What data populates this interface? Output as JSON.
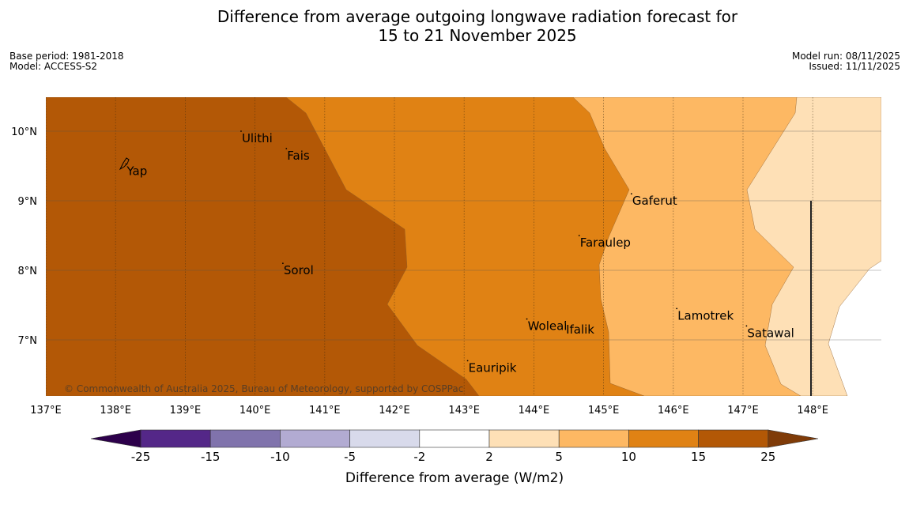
{
  "title_line1": "Difference from average outgoing longwave radiation forecast for",
  "title_line2": "15 to 21 November 2025",
  "base_period": "Base period: 1981-2018",
  "model": "Model: ACCESS-S2",
  "model_run": "Model run: 08/11/2025",
  "issued": "Issued: 11/11/2025",
  "copyright": "© Commonwealth of Australia 2025, Bureau of Meteorology, supported by COSPPac",
  "colorbar_title": "Difference from average (W/m2)",
  "map_data": {
    "lon_range": [
      137,
      149
    ],
    "lat_range": [
      6.2,
      10.5
    ],
    "lon_ticks": [
      {
        "value": 137,
        "label": "137°E"
      },
      {
        "value": 138,
        "label": "138°E"
      },
      {
        "value": 139,
        "label": "139°E"
      },
      {
        "value": 140,
        "label": "140°E"
      },
      {
        "value": 141,
        "label": "141°E"
      },
      {
        "value": 142,
        "label": "142°E"
      },
      {
        "value": 143,
        "label": "143°E"
      },
      {
        "value": 144,
        "label": "144°E"
      },
      {
        "value": 145,
        "label": "145°E"
      },
      {
        "value": 146,
        "label": "146°E"
      },
      {
        "value": 147,
        "label": "147°E"
      },
      {
        "value": 148,
        "label": "148°E"
      }
    ],
    "lat_ticks": [
      {
        "value": 10,
        "label": "10°N"
      },
      {
        "value": 9,
        "label": "9°N"
      },
      {
        "value": 8,
        "label": "8°N"
      },
      {
        "value": 7,
        "label": "7°N"
      }
    ],
    "places": [
      {
        "name": "Ulithi",
        "lon": 139.8,
        "lat": 10.0
      },
      {
        "name": "Fais",
        "lon": 140.45,
        "lat": 9.75
      },
      {
        "name": "Yap",
        "lon": 138.15,
        "lat": 9.53
      },
      {
        "name": "Gaferut",
        "lon": 145.4,
        "lat": 9.1
      },
      {
        "name": "Faraulep",
        "lon": 144.65,
        "lat": 8.5
      },
      {
        "name": "Sorol",
        "lon": 140.4,
        "lat": 8.1
      },
      {
        "name": "Lamotrek",
        "lon": 146.05,
        "lat": 7.45
      },
      {
        "name": "Woleai",
        "lon": 143.9,
        "lat": 7.3
      },
      {
        "name": "Ifalik",
        "lon": 144.45,
        "lat": 7.25
      },
      {
        "name": "Satawal",
        "lon": 147.05,
        "lat": 7.2
      },
      {
        "name": "Eauripik",
        "lon": 143.05,
        "lat": 6.7
      }
    ],
    "colors": {
      "c10_15": "#e08214",
      "c15_25": "#b35806",
      "c5_10": "#fdb863",
      "c2_5": "#fee0b6",
      "nochange": "#ffffff"
    }
  },
  "colorbar": {
    "bounds": [
      "-25",
      "-15",
      "-10",
      "-5",
      "-2",
      "2",
      "5",
      "10",
      "15",
      "25"
    ],
    "colors": [
      "#542788",
      "#8073ac",
      "#b2abd2",
      "#d8daeb",
      "#ffffff",
      "#fee0b6",
      "#fdb863",
      "#e08214",
      "#b35806"
    ],
    "under_color": "#2d004b",
    "over_color": "#7f3b08"
  }
}
